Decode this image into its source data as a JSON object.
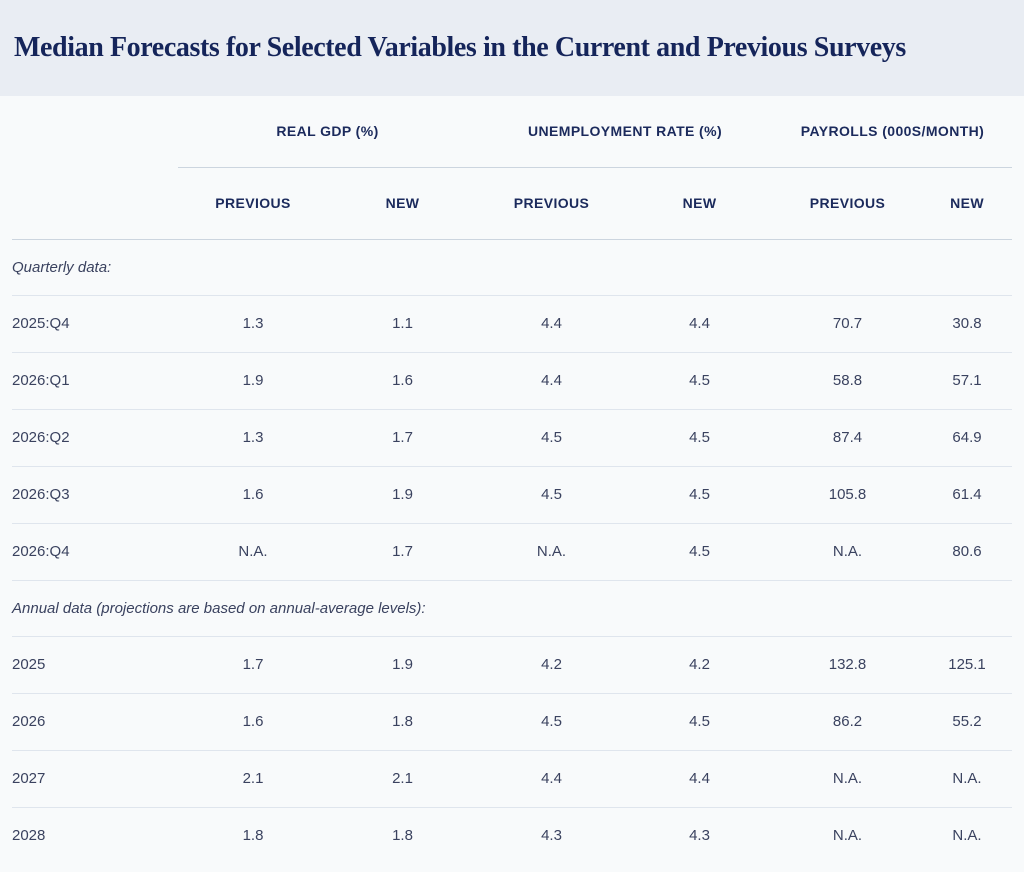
{
  "title": "Median Forecasts for Selected Variables in the Current and Previous Surveys",
  "colors": {
    "title_bar_background": "#e9edf3",
    "page_background": "#f8fafb",
    "heading_navy": "#1b2a5c",
    "title_navy": "#15255a",
    "body_text": "#3a425f",
    "header_rule": "#ccd5df",
    "row_rule": "#dfe5ed"
  },
  "chart_data": {
    "type": "table",
    "title": "Median Forecasts for Selected Variables in the Current and Previous Surveys",
    "column_groups": [
      "REAL GDP (%)",
      "UNEMPLOYMENT RATE (%)",
      "PAYROLLS (000S/MONTH)"
    ],
    "subheaders": [
      "PREVIOUS",
      "NEW",
      "PREVIOUS",
      "NEW",
      "PREVIOUS",
      "NEW"
    ],
    "sections": [
      {
        "label": "Quarterly data:",
        "rows": [
          {
            "label": "2025:Q4",
            "values": [
              "1.3",
              "1.1",
              "4.4",
              "4.4",
              "70.7",
              "30.8"
            ]
          },
          {
            "label": "2026:Q1",
            "values": [
              "1.9",
              "1.6",
              "4.4",
              "4.5",
              "58.8",
              "57.1"
            ]
          },
          {
            "label": "2026:Q2",
            "values": [
              "1.3",
              "1.7",
              "4.5",
              "4.5",
              "87.4",
              "64.9"
            ]
          },
          {
            "label": "2026:Q3",
            "values": [
              "1.6",
              "1.9",
              "4.5",
              "4.5",
              "105.8",
              "61.4"
            ]
          },
          {
            "label": "2026:Q4",
            "values": [
              "N.A.",
              "1.7",
              "N.A.",
              "4.5",
              "N.A.",
              "80.6"
            ]
          }
        ]
      },
      {
        "label": "Annual data (projections are based on annual-average levels):",
        "rows": [
          {
            "label": "2025",
            "values": [
              "1.7",
              "1.9",
              "4.2",
              "4.2",
              "132.8",
              "125.1"
            ]
          },
          {
            "label": "2026",
            "values": [
              "1.6",
              "1.8",
              "4.5",
              "4.5",
              "86.2",
              "55.2"
            ]
          },
          {
            "label": "2027",
            "values": [
              "2.1",
              "2.1",
              "4.4",
              "4.4",
              "N.A.",
              "N.A."
            ]
          },
          {
            "label": "2028",
            "values": [
              "1.8",
              "1.8",
              "4.3",
              "4.3",
              "N.A.",
              "N.A."
            ]
          }
        ]
      }
    ]
  }
}
